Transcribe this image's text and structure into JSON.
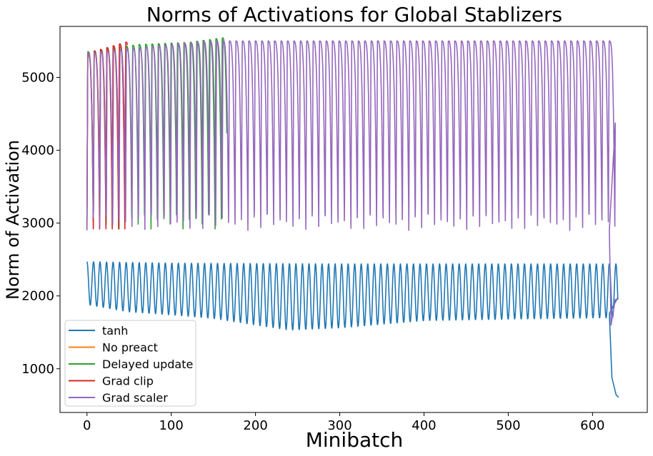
{
  "chart_data": {
    "type": "line",
    "title": "Norms of Activations for Global Stablizers",
    "xlabel": "Minibatch",
    "ylabel": "Norm of Activation",
    "xlim": [
      -32,
      665
    ],
    "ylim": [
      400,
      5700
    ],
    "xticks": [
      0,
      100,
      200,
      300,
      400,
      500,
      600
    ],
    "xtick_labels": [
      "0",
      "100",
      "200",
      "300",
      "400",
      "500",
      "600"
    ],
    "yticks": [
      1000,
      2000,
      3000,
      4000,
      5000
    ],
    "ytick_labels": [
      "1000",
      "2000",
      "3000",
      "4000",
      "5000"
    ],
    "legend_position": "lower-left",
    "grid": false,
    "series": [
      {
        "name": "tanh",
        "color": "#1f77b4",
        "period": 7.75,
        "range": [
          0,
          630
        ],
        "peaks": [
          [
            0,
            2470
          ],
          [
            100,
            2450
          ],
          [
            300,
            2440
          ],
          [
            620,
            2440
          ]
        ],
        "troughs": [
          [
            0,
            1880
          ],
          [
            50,
            1780
          ],
          [
            100,
            1740
          ],
          [
            150,
            1690
          ],
          [
            200,
            1600
          ],
          [
            240,
            1530
          ],
          [
            300,
            1560
          ],
          [
            360,
            1620
          ],
          [
            400,
            1660
          ],
          [
            500,
            1680
          ],
          [
            620,
            1700
          ]
        ],
        "tail": [
          [
            620,
            1760
          ],
          [
            623,
            880
          ],
          [
            628,
            640
          ],
          [
            631,
            610
          ]
        ]
      },
      {
        "name": "No preact",
        "color": "#ff7f0e",
        "period": 7.5,
        "range": [
          0,
          45
        ],
        "peaks": [
          [
            0,
            5300
          ],
          [
            45,
            5480
          ]
        ],
        "troughs": [
          [
            0,
            2950
          ],
          [
            45,
            2950
          ]
        ],
        "tail": []
      },
      {
        "name": "Delayed update",
        "color": "#2ca02c",
        "period": 7.6,
        "range": [
          0,
          166
        ],
        "peaks": [
          [
            0,
            5350
          ],
          [
            60,
            5450
          ],
          [
            120,
            5480
          ],
          [
            166,
            5550
          ]
        ],
        "troughs": [
          [
            0,
            2920
          ],
          [
            166,
            2920
          ]
        ],
        "tail": []
      },
      {
        "name": "Grad clip",
        "color": "#d62728",
        "period": 7.5,
        "range": [
          0,
          48
        ],
        "peaks": [
          [
            0,
            5330
          ],
          [
            48,
            5490
          ]
        ],
        "troughs": [
          [
            0,
            2920
          ],
          [
            48,
            2920
          ]
        ],
        "tail": []
      },
      {
        "name": "Grad scaler",
        "color": "#9467bd",
        "period": 7.64,
        "range": [
          0,
          627
        ],
        "peaks": [
          [
            0,
            5330
          ],
          [
            100,
            5450
          ],
          [
            150,
            5500
          ],
          [
            627,
            5500
          ]
        ],
        "troughs": [
          [
            0,
            2900
          ],
          [
            627,
            2900
          ]
        ],
        "tail": [
          [
            620,
            2900
          ],
          [
            622,
            1600
          ],
          [
            627,
            1950
          ],
          [
            631,
            1960
          ]
        ]
      }
    ]
  }
}
